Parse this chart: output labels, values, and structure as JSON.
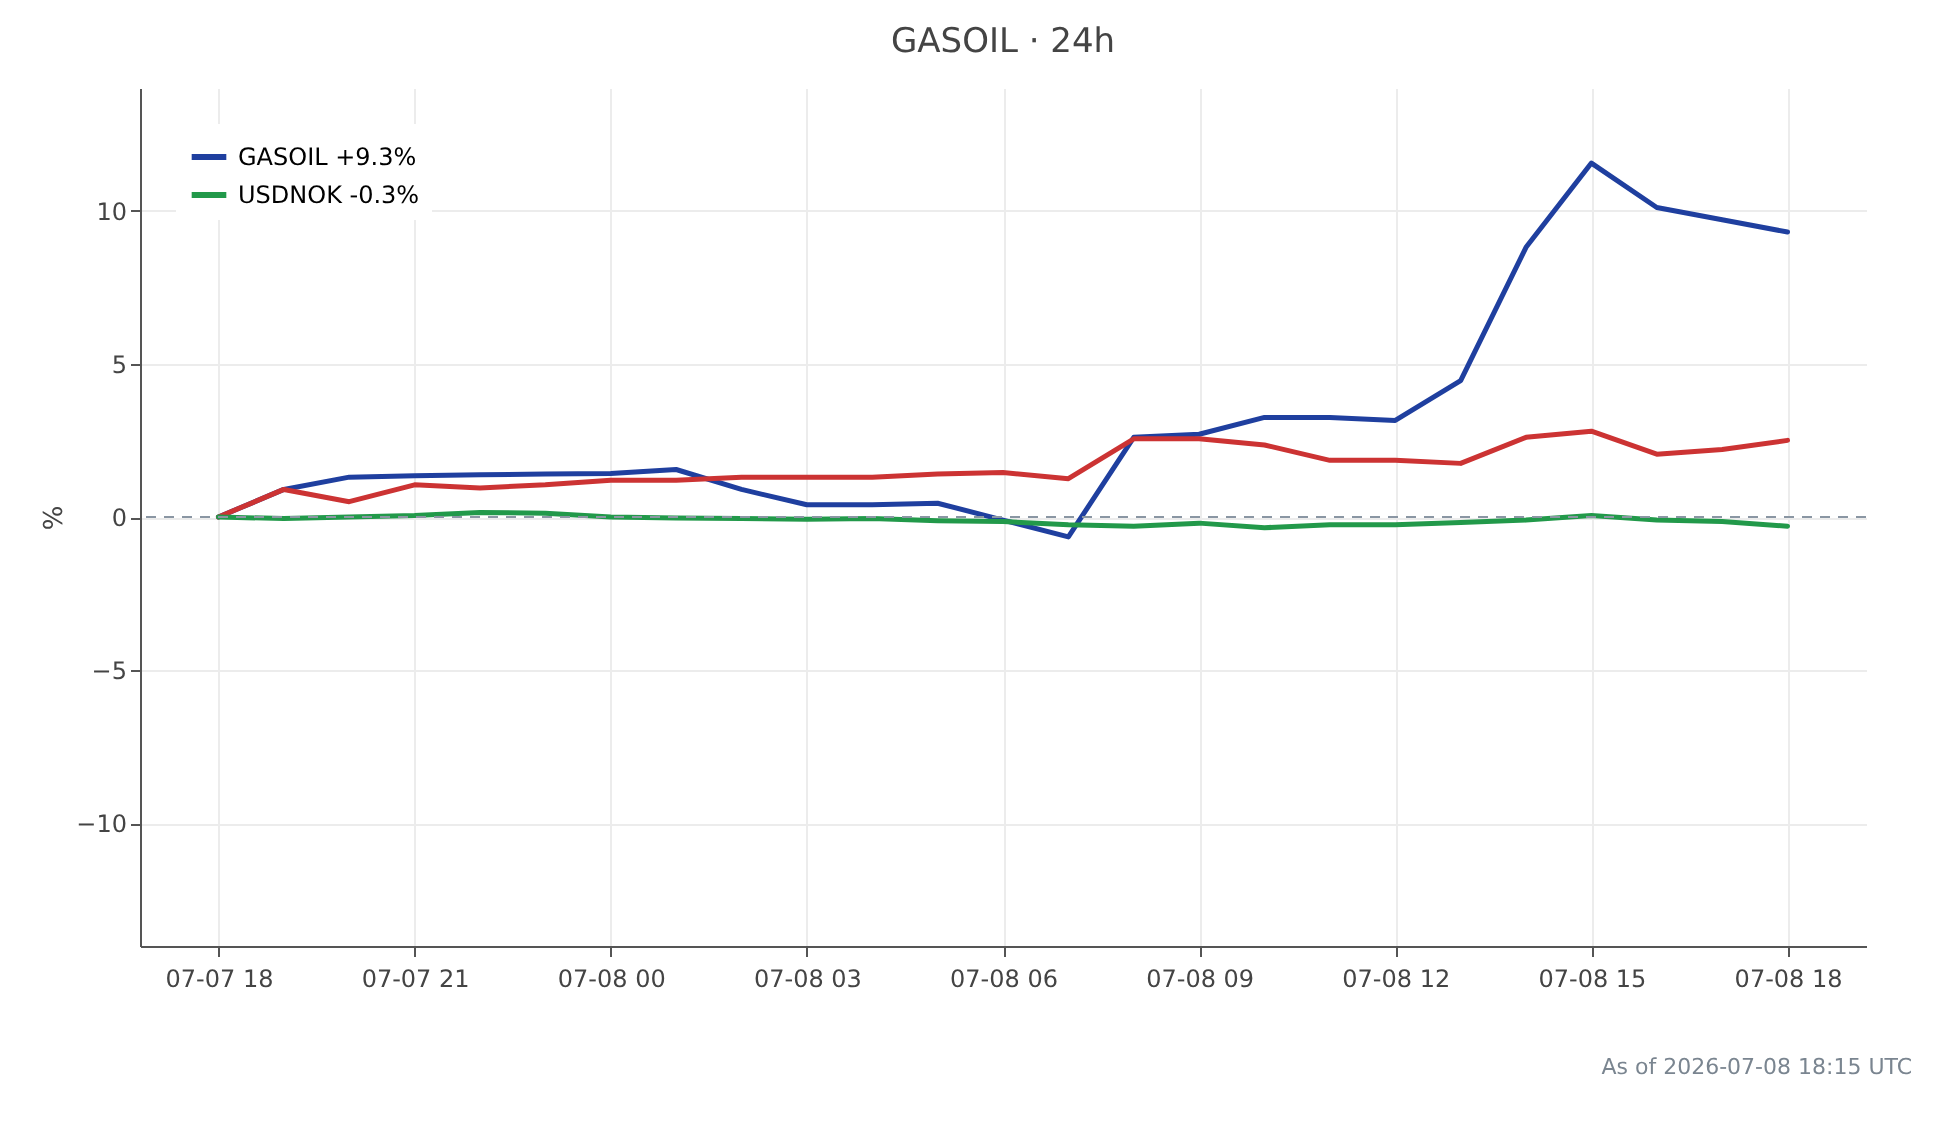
{
  "chart_data": {
    "type": "line",
    "title": "GASOIL · 24h",
    "ylabel": "%",
    "x": [
      "2026-07-07T18:00",
      "2026-07-07T19:00",
      "2026-07-07T20:00",
      "2026-07-07T21:00",
      "2026-07-07T22:00",
      "2026-07-07T23:00",
      "2026-07-08T00:00",
      "2026-07-08T01:00",
      "2026-07-08T02:00",
      "2026-07-08T03:00",
      "2026-07-08T04:00",
      "2026-07-08T05:00",
      "2026-07-08T06:00",
      "2026-07-08T07:00",
      "2026-07-08T08:00",
      "2026-07-08T09:00",
      "2026-07-08T10:00",
      "2026-07-08T11:00",
      "2026-07-08T12:00",
      "2026-07-08T13:00",
      "2026-07-08T14:00",
      "2026-07-08T15:00",
      "2026-07-08T16:00",
      "2026-07-08T17:00",
      "2026-07-08T18:00"
    ],
    "series": [
      {
        "name": "GASOIL +9.3%",
        "color": "#1f3f9f",
        "values": [
          0,
          0.9,
          1.3,
          1.35,
          1.38,
          1.4,
          1.42,
          1.55,
          0.9,
          0.4,
          0.4,
          0.45,
          -0.1,
          -0.65,
          2.6,
          2.7,
          3.25,
          3.25,
          3.15,
          4.45,
          8.8,
          11.55,
          10.1,
          9.7,
          9.3
        ]
      },
      {
        "color": "#cc3333",
        "values": [
          0,
          0.9,
          0.5,
          1.05,
          0.95,
          1.05,
          1.2,
          1.2,
          1.3,
          1.3,
          1.3,
          1.4,
          1.45,
          1.25,
          2.55,
          2.55,
          2.35,
          1.85,
          1.85,
          1.75,
          2.6,
          2.8,
          2.05,
          2.2,
          2.5
        ]
      },
      {
        "name": "USDNOK -0.3%",
        "color": "#22994a",
        "values": [
          0,
          -0.05,
          0,
          0.05,
          0.15,
          0.12,
          0,
          -0.03,
          -0.05,
          -0.07,
          -0.05,
          -0.12,
          -0.15,
          -0.25,
          -0.3,
          -0.2,
          -0.35,
          -0.25,
          -0.25,
          -0.18,
          -0.1,
          0.05,
          -0.1,
          -0.15,
          -0.3
        ]
      }
    ],
    "xlim": [
      "2026-07-07T16:48",
      "2026-07-08T19:12"
    ],
    "xticks": [
      {
        "value": "2026-07-07T18:00",
        "label": "07-07 18"
      },
      {
        "value": "2026-07-07T21:00",
        "label": "07-07 21"
      },
      {
        "value": "2026-07-08T00:00",
        "label": "07-08 00"
      },
      {
        "value": "2026-07-08T03:00",
        "label": "07-08 03"
      },
      {
        "value": "2026-07-08T06:00",
        "label": "07-08 06"
      },
      {
        "value": "2026-07-08T09:00",
        "label": "07-08 09"
      },
      {
        "value": "2026-07-08T12:00",
        "label": "07-08 12"
      },
      {
        "value": "2026-07-08T15:00",
        "label": "07-08 15"
      },
      {
        "value": "2026-07-08T18:00",
        "label": "07-08 18"
      }
    ],
    "ylim": [
      -14,
      14
    ],
    "yticks": [
      {
        "value": -10,
        "label": "−10"
      },
      {
        "value": -5,
        "label": "−5"
      },
      0,
      5,
      10
    ],
    "ref_lines": [
      {
        "axis": "y",
        "value": 0,
        "color": "#8a96a3",
        "line_style": "dashed"
      }
    ],
    "grid": true,
    "legend": "top left",
    "marker": "none",
    "line_style": "solid",
    "annotations": [
      "As of 2026-07-08 18:15 UTC"
    ]
  }
}
